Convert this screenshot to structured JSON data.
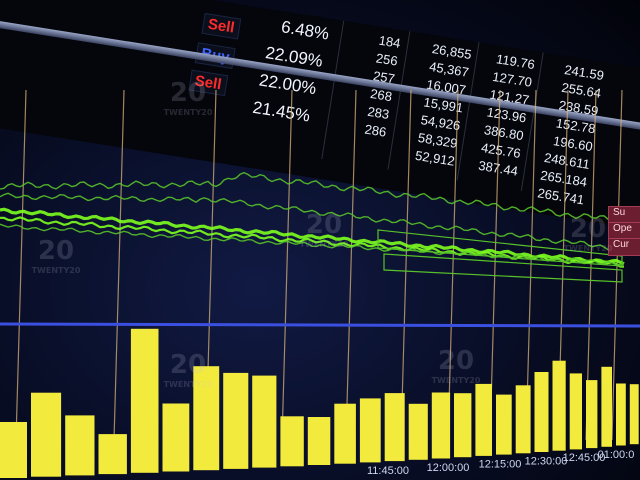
{
  "table": {
    "actions": [
      "Sell",
      "Buy",
      "Sell"
    ],
    "percents": [
      "6.48%",
      "22.09%",
      "22.00%",
      "21.45%"
    ],
    "col_a": [
      "184",
      "256",
      "257",
      "268",
      "283",
      "286"
    ],
    "col_b": [
      "26,855",
      "45,367",
      "16,007",
      "15,991",
      "54,926",
      "58,329",
      "52,912"
    ],
    "col_c": [
      "119.76",
      "127.70",
      "121.27",
      "123.96",
      "386.80",
      "425.76",
      "387.44"
    ],
    "col_d": [
      "241.59",
      "255.64",
      "238.59",
      "152.78",
      "196.60",
      "248.611",
      "265.184",
      "265.741"
    ]
  },
  "side_buttons": [
    "Su",
    "Ope",
    "Cur"
  ],
  "time_labels": [
    "11:45:00",
    "12:00:00",
    "12:15:00",
    "12:30:00",
    "12:45:00",
    "01:00:0"
  ],
  "watermark": {
    "logo": "20",
    "text": "TWENTY20"
  },
  "colors": {
    "background": "#0a1233",
    "line_bright": "#7dff1f",
    "line_dim": "#58c22a",
    "bar": "#f2ea3c",
    "grid": "#d8b27a",
    "divider": "#3b50e0",
    "sell": "#ff2a2a",
    "buy": "#3f63ff"
  },
  "bar_levels": [
    0.28,
    0.42,
    0.3,
    0.2,
    0.72,
    0.34,
    0.52,
    0.48,
    0.46,
    0.25,
    0.24,
    0.3,
    0.32,
    0.34,
    0.28,
    0.33,
    0.32,
    0.36,
    0.3,
    0.34,
    0.4,
    0.45,
    0.38,
    0.34,
    0.4,
    0.31,
    0.3,
    0.28,
    0.27,
    0.24,
    0.22
  ]
}
